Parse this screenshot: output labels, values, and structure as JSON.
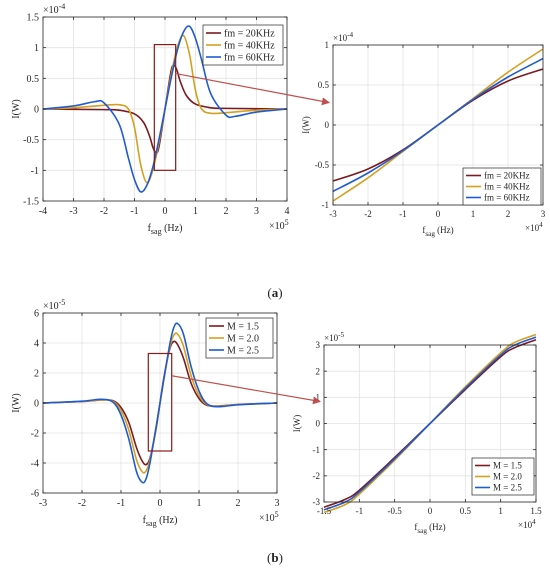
{
  "captions": {
    "a": "a",
    "b": "b"
  },
  "chart_data": [
    {
      "id": "a-main",
      "type": "line",
      "xlabel": "f",
      "xlabel_sub": "sag",
      "xlabel_unit": " (Hz)",
      "ylabel": "I(W)",
      "xlim": [
        -4,
        4
      ],
      "ylim": [
        -1.5,
        1.5
      ],
      "xticks": [
        "-4",
        "-3",
        "-2",
        "-1",
        "0",
        "1",
        "2",
        "3",
        "4"
      ],
      "yticks": [
        "-1.5",
        "-1",
        "-0.5",
        "0",
        "0.5",
        "1",
        "1.5"
      ],
      "x_multiplier": "5",
      "y_multiplier": "-4",
      "grid": true,
      "legend": "top-right",
      "box_x": [
        -0.35,
        0.35
      ],
      "box_y": [
        -1.0,
        1.05
      ],
      "series": [
        {
          "name": "fm = 20KHz",
          "color": "#7b1a1f",
          "x": [
            -4,
            -2,
            -1.5,
            -1,
            -0.7,
            -0.5,
            -0.4,
            -0.3,
            -0.2,
            0,
            0.2,
            0.3,
            0.4,
            0.5,
            0.7,
            1,
            1.5,
            2,
            4
          ],
          "y": [
            0,
            -0.01,
            -0.02,
            -0.08,
            -0.22,
            -0.45,
            -0.62,
            -0.71,
            -0.62,
            0,
            0.62,
            0.71,
            0.62,
            0.45,
            0.22,
            0.08,
            0.02,
            0.01,
            0
          ]
        },
        {
          "name": "fm = 40KHz",
          "color": "#d4a020",
          "x": [
            -4,
            -3,
            -2,
            -1.5,
            -1.2,
            -1,
            -0.8,
            -0.6,
            -0.4,
            -0.2,
            0,
            0.2,
            0.4,
            0.6,
            0.8,
            1,
            1.2,
            1.5,
            2,
            3,
            4
          ],
          "y": [
            0,
            0.02,
            0.06,
            0.07,
            0,
            -0.3,
            -0.9,
            -1.2,
            -1.0,
            -0.55,
            0,
            0.55,
            1.0,
            1.2,
            0.9,
            0.3,
            0,
            -0.07,
            -0.06,
            -0.02,
            0
          ]
        },
        {
          "name": "fm = 60KHz",
          "color": "#1f5bd0",
          "x": [
            -4,
            -3,
            -2.3,
            -2,
            -1.5,
            -1.2,
            -1,
            -0.8,
            -0.6,
            -0.4,
            -0.2,
            0,
            0.2,
            0.4,
            0.6,
            0.8,
            1,
            1.2,
            1.5,
            2,
            2.3,
            3,
            4
          ],
          "y": [
            0,
            0.05,
            0.12,
            0.1,
            -0.25,
            -0.8,
            -1.15,
            -1.35,
            -1.25,
            -0.95,
            -0.5,
            0,
            0.5,
            0.95,
            1.25,
            1.35,
            1.15,
            0.8,
            0.25,
            -0.1,
            -0.12,
            -0.05,
            0
          ]
        }
      ]
    },
    {
      "id": "a-zoom",
      "type": "line",
      "xlabel": "f",
      "xlabel_sub": "sag",
      "xlabel_unit": " (Hz)",
      "ylabel": "I(W)",
      "xlim": [
        -3,
        3
      ],
      "ylim": [
        -1,
        1
      ],
      "xticks": [
        "-3",
        "-2",
        "-1",
        "0",
        "1",
        "2",
        "3"
      ],
      "yticks": [
        "-1",
        "-0.5",
        "0",
        "0.5",
        "1"
      ],
      "x_multiplier": "4",
      "y_multiplier": "-4",
      "grid": true,
      "legend": "bottom-right",
      "series": [
        {
          "name": "fm = 20KHz",
          "color": "#7b1a1f",
          "x": [
            -3,
            -2,
            -1,
            0,
            1,
            2,
            3
          ],
          "y": [
            -0.7,
            -0.55,
            -0.31,
            0,
            0.31,
            0.55,
            0.7
          ]
        },
        {
          "name": "fm = 40KHz",
          "color": "#d4a020",
          "x": [
            -3,
            -2,
            -1,
            0,
            1,
            2,
            3
          ],
          "y": [
            -0.95,
            -0.66,
            -0.33,
            0,
            0.33,
            0.66,
            0.95
          ]
        },
        {
          "name": "fm = 60KHz",
          "color": "#1f5bd0",
          "x": [
            -3,
            -2,
            -1,
            0,
            1,
            2,
            3
          ],
          "y": [
            -0.83,
            -0.6,
            -0.32,
            0,
            0.32,
            0.6,
            0.83
          ]
        }
      ]
    },
    {
      "id": "b-main",
      "type": "line",
      "xlabel": "f",
      "xlabel_sub": "sag",
      "xlabel_unit": " (Hz)",
      "ylabel": "I(W)",
      "xlim": [
        -3,
        3
      ],
      "ylim": [
        -6,
        6
      ],
      "xticks": [
        "-3",
        "-2",
        "-1",
        "0",
        "1",
        "2",
        "3"
      ],
      "yticks": [
        "-6",
        "-4",
        "-2",
        "0",
        "2",
        "4",
        "6"
      ],
      "x_multiplier": "5",
      "y_multiplier": "-5",
      "grid": true,
      "legend": "top-right",
      "box_x": [
        -0.3,
        0.3
      ],
      "box_y": [
        -3.2,
        3.3
      ],
      "series": [
        {
          "name": "M = 1.5",
          "color": "#7b1a1f",
          "x": [
            -3,
            -2,
            -1.5,
            -1.2,
            -1,
            -0.8,
            -0.6,
            -0.45,
            -0.35,
            -0.25,
            -0.1,
            0,
            0.1,
            0.25,
            0.35,
            0.45,
            0.6,
            0.8,
            1,
            1.2,
            1.5,
            2,
            3
          ],
          "y": [
            0,
            0.1,
            0.2,
            0.15,
            -0.3,
            -1.3,
            -3.0,
            -3.9,
            -4.1,
            -3.6,
            -1.7,
            0,
            1.7,
            3.6,
            4.1,
            3.9,
            3.0,
            1.3,
            0.3,
            -0.15,
            -0.2,
            -0.1,
            0
          ]
        },
        {
          "name": "M = 2.0",
          "color": "#d4a020",
          "x": [
            -3,
            -2,
            -1.5,
            -1.2,
            -1,
            -0.8,
            -0.6,
            -0.45,
            -0.35,
            -0.25,
            -0.1,
            0,
            0.1,
            0.25,
            0.35,
            0.45,
            0.6,
            0.8,
            1,
            1.2,
            1.5,
            2,
            3
          ],
          "y": [
            0,
            0.1,
            0.22,
            0.1,
            -0.5,
            -1.8,
            -3.8,
            -4.6,
            -4.5,
            -3.7,
            -1.6,
            0,
            1.6,
            3.7,
            4.5,
            4.6,
            3.8,
            1.8,
            0.5,
            -0.1,
            -0.22,
            -0.1,
            0
          ]
        },
        {
          "name": "M = 2.5",
          "color": "#1f5bd0",
          "x": [
            -3,
            -2,
            -1.5,
            -1.2,
            -1,
            -0.8,
            -0.6,
            -0.45,
            -0.35,
            -0.25,
            -0.1,
            0,
            0.1,
            0.25,
            0.35,
            0.45,
            0.6,
            0.8,
            1,
            1.2,
            1.5,
            2,
            3
          ],
          "y": [
            0,
            0.12,
            0.25,
            0.05,
            -0.8,
            -2.4,
            -4.6,
            -5.3,
            -5.0,
            -3.9,
            -1.6,
            0,
            1.6,
            3.9,
            5.0,
            5.3,
            4.6,
            2.4,
            0.8,
            -0.05,
            -0.25,
            -0.12,
            0
          ]
        }
      ]
    },
    {
      "id": "b-zoom",
      "type": "line",
      "xlabel": "f",
      "xlabel_sub": "sag",
      "xlabel_unit": " (Hz)",
      "ylabel": "I(W)",
      "xlim": [
        -1.5,
        1.5
      ],
      "ylim": [
        -3,
        3
      ],
      "xticks": [
        "-1.5",
        "-1",
        "-0.5",
        "0",
        "0.5",
        "1",
        "1.5"
      ],
      "yticks": [
        "-3",
        "-2",
        "-1",
        "0",
        "1",
        "2",
        "3"
      ],
      "x_multiplier": "4",
      "y_multiplier": "-5",
      "grid": true,
      "legend": "bottom-right",
      "series": [
        {
          "name": "M = 1.5",
          "color": "#7b1a1f",
          "x": [
            -1.5,
            -1.2,
            -1,
            -0.5,
            0,
            0.5,
            1,
            1.2,
            1.5
          ],
          "y": [
            -3.2,
            -2.9,
            -2.55,
            -1.3,
            0,
            1.3,
            2.55,
            2.9,
            3.2
          ]
        },
        {
          "name": "M = 2.0",
          "color": "#d4a020",
          "x": [
            -1.5,
            -1.2,
            -1,
            -0.5,
            0,
            0.5,
            1,
            1.2,
            1.5
          ],
          "y": [
            -3.4,
            -3.1,
            -2.7,
            -1.4,
            0,
            1.4,
            2.7,
            3.1,
            3.4
          ]
        },
        {
          "name": "M = 2.5",
          "color": "#1f5bd0",
          "x": [
            -1.5,
            -1.2,
            -1,
            -0.5,
            0,
            0.5,
            1,
            1.2,
            1.5
          ],
          "y": [
            -3.3,
            -3.0,
            -2.62,
            -1.35,
            0,
            1.35,
            2.62,
            3.0,
            3.3
          ]
        }
      ]
    }
  ]
}
